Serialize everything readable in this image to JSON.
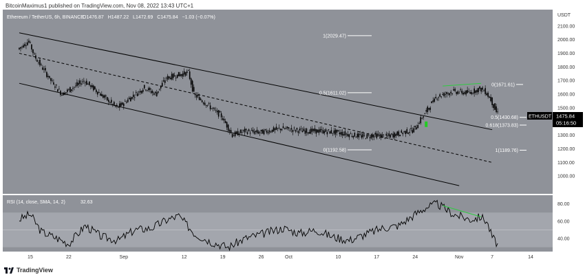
{
  "header": {
    "publisher": "BitcoinMaximus1 published on TradingView.com, Nov 08, 2022 13:43 UTC+1"
  },
  "footer": {
    "brand": "TradingView",
    "logo_icon": "tradingview-logo-icon"
  },
  "colors": {
    "pane_bg": "#8f9299",
    "rsi_band": "#a3a6ad",
    "candle": "#000000",
    "divergence": "#2ecc40",
    "signal": "#22cc22"
  },
  "chart_data": [
    {
      "type": "candlestick",
      "title": "Ethereum / TetherUS, 6h, BINANCE",
      "ohlc_readout": {
        "O": "1476.87",
        "H": "1487.22",
        "L": "1472.69",
        "C": "1475.84",
        "change": "−1.03 (−0.07%)"
      },
      "y_unit": "USDT",
      "ylim": [
        870,
        2220
      ],
      "y_ticks": [
        "2100.00",
        "2000.00",
        "1900.00",
        "1800.00",
        "1700.00",
        "1600.00",
        "1500.00",
        "1400.00",
        "1300.00",
        "1200.00",
        "1100.00",
        "1000.00"
      ],
      "x_ticks": [
        "15",
        "22",
        "Sep",
        "12",
        "19",
        "26",
        "Oct",
        "10",
        "17",
        "24",
        "Nov",
        "7",
        "14"
      ],
      "price_label": {
        "symbol": "ETHUSDT",
        "price": "1475.84",
        "countdown": "05:16:50"
      },
      "path_keypoints": [
        [
          "Aug 13",
          1930
        ],
        [
          "Aug 15",
          1990
        ],
        [
          "Aug 16",
          1880
        ],
        [
          "Aug 19",
          1700
        ],
        [
          "Aug 21",
          1600
        ],
        [
          "Aug 25",
          1700
        ],
        [
          "Aug 28",
          1600
        ],
        [
          "Aug 31",
          1500
        ],
        [
          "Sep 5",
          1650
        ],
        [
          "Sep 7",
          1600
        ],
        [
          "Sep 9",
          1720
        ],
        [
          "Sep 13",
          1760
        ],
        [
          "Sep 14",
          1600
        ],
        [
          "Sep 19",
          1440
        ],
        [
          "Sep 21",
          1300
        ],
        [
          "Sep 23",
          1330
        ],
        [
          "Sep 26",
          1320
        ],
        [
          "Sep 30",
          1350
        ],
        [
          "Oct 4",
          1330
        ],
        [
          "Oct 7",
          1330
        ],
        [
          "Oct 10",
          1320
        ],
        [
          "Oct 13",
          1300
        ],
        [
          "Oct 15",
          1290
        ],
        [
          "Oct 17",
          1300
        ],
        [
          "Oct 19",
          1290
        ],
        [
          "Oct 21",
          1310
        ],
        [
          "Oct 24",
          1340
        ],
        [
          "Oct 26",
          1460
        ],
        [
          "Oct 28",
          1580
        ],
        [
          "Oct 31",
          1620
        ],
        [
          "Nov 3",
          1610
        ],
        [
          "Nov 5",
          1640
        ],
        [
          "Nov 6",
          1620
        ],
        [
          "Nov 7",
          1560
        ],
        [
          "Nov 8",
          1470
        ]
      ],
      "fib_levels": [
        {
          "label": "1(2029.47)",
          "value": 2029.47
        },
        {
          "label": "0.5(1611.02)",
          "value": 1611.02
        },
        {
          "label": "0(1192.58)",
          "value": 1192.58
        },
        {
          "label": "0(1671.61)",
          "value": 1671.61
        },
        {
          "label": "0.5(1430.68)",
          "value": 1430.68
        },
        {
          "label": "0.618(1373.83)",
          "value": 1373.83
        },
        {
          "label": "1(1189.76)",
          "value": 1189.76
        }
      ],
      "channel": [
        {
          "style": "solid",
          "from": [
            "Aug 13",
            2050
          ],
          "to": [
            "Nov 7",
            1340
          ]
        },
        {
          "style": "dashed",
          "from": [
            "Aug 13",
            1900
          ],
          "to": [
            "Nov 7",
            1100
          ]
        },
        {
          "style": "solid",
          "from": [
            "Aug 13",
            1680
          ],
          "to": [
            "Nov 1",
            930
          ]
        }
      ],
      "divergence_price": {
        "from": [
          "Oct 29",
          1660
        ],
        "to": [
          "Nov 5",
          1680
        ]
      }
    },
    {
      "type": "line",
      "title": "RSI (14, close, SMA, 14, 2)",
      "readout": "32.63",
      "ylim": [
        25,
        90
      ],
      "y_ticks": [
        "80.00",
        "60.00",
        "40.00"
      ],
      "band": [
        30,
        70
      ],
      "path_keypoints": [
        [
          "Aug 13",
          62
        ],
        [
          "Aug 15",
          68
        ],
        [
          "Aug 17",
          48
        ],
        [
          "Aug 20",
          40
        ],
        [
          "Aug 22",
          34
        ],
        [
          "Aug 25",
          55
        ],
        [
          "Aug 28",
          42
        ],
        [
          "Aug 31",
          38
        ],
        [
          "Sep 3",
          50
        ],
        [
          "Sep 6",
          52
        ],
        [
          "Sep 9",
          62
        ],
        [
          "Sep 11",
          66
        ],
        [
          "Sep 14",
          45
        ],
        [
          "Sep 17",
          36
        ],
        [
          "Sep 20",
          30
        ],
        [
          "Sep 23",
          40
        ],
        [
          "Sep 26",
          45
        ],
        [
          "Sep 30",
          52
        ],
        [
          "Oct 3",
          46
        ],
        [
          "Oct 6",
          50
        ],
        [
          "Oct 9",
          42
        ],
        [
          "Oct 12",
          38
        ],
        [
          "Oct 15",
          45
        ],
        [
          "Oct 18",
          52
        ],
        [
          "Oct 21",
          55
        ],
        [
          "Oct 24",
          68
        ],
        [
          "Oct 26",
          76
        ],
        [
          "Oct 28",
          80
        ],
        [
          "Oct 31",
          68
        ],
        [
          "Nov 3",
          62
        ],
        [
          "Nov 5",
          65
        ],
        [
          "Nov 6",
          60
        ],
        [
          "Nov 7",
          42
        ],
        [
          "Nov 8",
          33
        ]
      ],
      "divergence_rsi": {
        "from": [
          "Oct 29",
          78
        ],
        "to": [
          "Nov 5",
          65
        ]
      }
    }
  ]
}
